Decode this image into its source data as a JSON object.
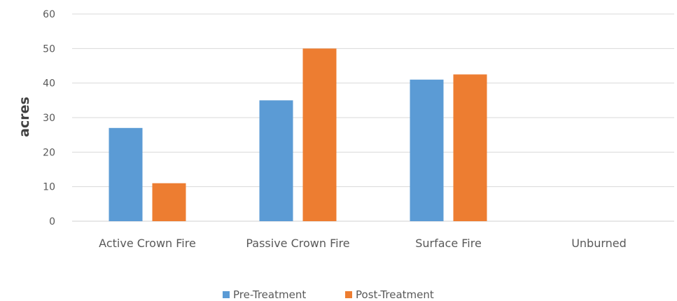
{
  "chart_data": {
    "type": "bar",
    "title": "",
    "xlabel": "",
    "ylabel": "acres",
    "ylim": [
      0,
      60
    ],
    "yticks": [
      0,
      10,
      20,
      30,
      40,
      50,
      60
    ],
    "grid": true,
    "legend_position": "bottom",
    "categories": [
      "Active Crown Fire",
      "Passive Crown Fire",
      "Surface Fire",
      "Unburned"
    ],
    "series": [
      {
        "name": "Pre-Treatment",
        "color": "#5b9bd5",
        "values": [
          27,
          35,
          41,
          0
        ]
      },
      {
        "name": "Post-Treatment",
        "color": "#ed7d31",
        "values": [
          11,
          50,
          42.5,
          0
        ]
      }
    ]
  }
}
